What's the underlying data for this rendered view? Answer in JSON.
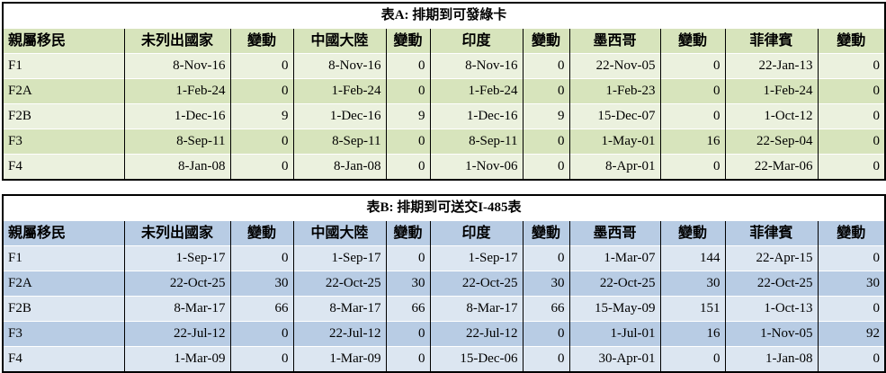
{
  "chart_data": [
    {
      "type": "table",
      "id": "A",
      "title": "表A: 排期到可發綠卡",
      "band_color": "#d7e4bc",
      "stripe_color": "#ebf1de",
      "columns": [
        "親屬移民",
        "未列出國家",
        "變動",
        "中國大陸",
        "變動",
        "印度",
        "變動",
        "墨西哥",
        "變動",
        "菲律賓",
        "變動"
      ],
      "rows": [
        [
          "F1",
          "8-Nov-16",
          "0",
          "8-Nov-16",
          "0",
          "8-Nov-16",
          "0",
          "22-Nov-05",
          "0",
          "22-Jan-13",
          "0"
        ],
        [
          "F2A",
          "1-Feb-24",
          "0",
          "1-Feb-24",
          "0",
          "1-Feb-24",
          "0",
          "1-Feb-23",
          "0",
          "1-Feb-24",
          "0"
        ],
        [
          "F2B",
          "1-Dec-16",
          "9",
          "1-Dec-16",
          "9",
          "1-Dec-16",
          "9",
          "15-Dec-07",
          "0",
          "1-Oct-12",
          "0"
        ],
        [
          "F3",
          "8-Sep-11",
          "0",
          "8-Sep-11",
          "0",
          "8-Sep-11",
          "0",
          "1-May-01",
          "16",
          "22-Sep-04",
          "0"
        ],
        [
          "F4",
          "8-Jan-08",
          "0",
          "8-Jan-08",
          "0",
          "1-Nov-06",
          "0",
          "8-Apr-01",
          "0",
          "22-Mar-06",
          "0"
        ]
      ]
    },
    {
      "type": "table",
      "id": "B",
      "title": "表B: 排期到可送交I-485表",
      "band_color": "#b8cce4",
      "stripe_color": "#dce6f1",
      "columns": [
        "親屬移民",
        "未列出國家",
        "變動",
        "中國大陸",
        "變動",
        "印度",
        "變動",
        "墨西哥",
        "變動",
        "菲律賓",
        "變動"
      ],
      "rows": [
        [
          "F1",
          "1-Sep-17",
          "0",
          "1-Sep-17",
          "0",
          "1-Sep-17",
          "0",
          "1-Mar-07",
          "144",
          "22-Apr-15",
          "0"
        ],
        [
          "F2A",
          "22-Oct-25",
          "30",
          "22-Oct-25",
          "30",
          "22-Oct-25",
          "30",
          "22-Oct-25",
          "30",
          "22-Oct-25",
          "30"
        ],
        [
          "F2B",
          "8-Mar-17",
          "66",
          "8-Mar-17",
          "66",
          "8-Mar-17",
          "66",
          "15-May-09",
          "151",
          "1-Oct-13",
          "0"
        ],
        [
          "F3",
          "22-Jul-12",
          "0",
          "22-Jul-12",
          "0",
          "22-Jul-12",
          "0",
          "1-Jul-01",
          "16",
          "1-Nov-05",
          "92"
        ],
        [
          "F4",
          "1-Mar-09",
          "0",
          "1-Mar-09",
          "0",
          "15-Dec-06",
          "0",
          "30-Apr-01",
          "0",
          "1-Jan-08",
          "0"
        ]
      ]
    }
  ]
}
